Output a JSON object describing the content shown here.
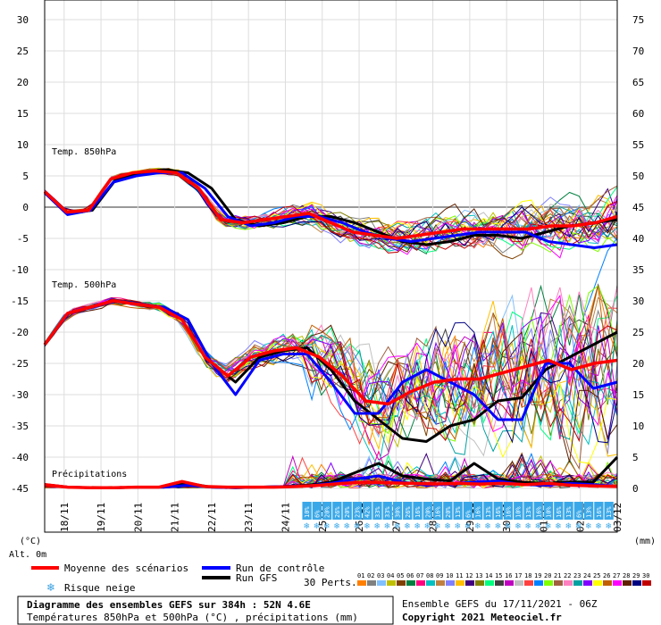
{
  "chart_data": {
    "type": "line",
    "title": "Diagramme des ensembles GEFS sur 384h : 52N 4.6E",
    "subtitle": "Températures 850hPa et 500hPa (°C) , précipitations (mm)",
    "left_axis": {
      "label": "(°C)",
      "ticks": [
        "30",
        "25",
        "20",
        "15",
        "10",
        "5",
        "0",
        "-5",
        "-10",
        "-15",
        "-20",
        "-25",
        "-30",
        "-35",
        "-40",
        "-45"
      ]
    },
    "right_axis": {
      "label": "(mm)",
      "ticks": [
        "75",
        "70",
        "65",
        "60",
        "55",
        "50",
        "45",
        "40",
        "35",
        "30",
        "25",
        "20",
        "15",
        "10",
        "5",
        "0"
      ]
    },
    "alt_label": "Alt. 0m",
    "dates": [
      "18/11",
      "19/11",
      "20/11",
      "21/11",
      "22/11",
      "23/11",
      "24/11",
      "25/11",
      "26/11",
      "27/11",
      "28/11",
      "29/11",
      "30/11",
      "01/12",
      "02/12",
      "03/12"
    ],
    "panel_labels": {
      "t850": "Temp. 850hPa",
      "t500": "Temp. 500hPa",
      "precip": "Précipitations"
    },
    "snow_risk_pct": [
      "10%",
      "6%",
      "20%",
      "26%",
      "20%",
      "23%",
      "42%",
      "33%",
      "33%",
      "30%",
      "26%",
      "16%",
      "20%",
      "16%",
      "20%",
      "13%",
      "6%",
      "16%",
      "13%",
      "16%",
      "16%",
      "10%",
      "13%",
      "16%",
      "10%",
      "16%",
      "13%",
      "6%",
      "13%",
      "16%",
      "13%"
    ],
    "series": [
      {
        "name": "Moyenne des scénarios",
        "color": "#ff0000",
        "t850": [
          2.5,
          -0.8,
          -0.5,
          4.5,
          5.5,
          5.8,
          5.5,
          3,
          -2,
          -2.5,
          -2,
          -1.5,
          -1,
          -2.5,
          -4,
          -4.5,
          -5,
          -4.5,
          -4,
          -3.5,
          -3.5,
          -3.5,
          -3.5,
          -3,
          -3,
          -2.5,
          -1.5
        ],
        "t500": [
          -22,
          -17,
          -16,
          -15,
          -15.5,
          -16,
          -18,
          -24,
          -27,
          -24,
          -23,
          -22.5,
          -24,
          -27,
          -31,
          -31.5,
          -29.5,
          -28,
          -27.5,
          -27.5,
          -26.5,
          -25.5,
          -24.5,
          -26,
          -25,
          -24.5
        ],
        "precip": [
          0.6,
          0.2,
          0.1,
          0.1,
          0.2,
          0.2,
          1.1,
          0.3,
          0.2,
          0.2,
          0.2,
          0.3,
          0.5,
          0.8,
          1.0,
          0.9,
          0.8,
          0.7,
          0.8,
          0.7,
          0.8,
          0.6,
          0.8,
          0.5,
          0.4,
          0.3
        ]
      },
      {
        "name": "Run de contrôle",
        "color": "#0000ff",
        "t850": [
          2.3,
          -1.2,
          -0.5,
          4,
          5,
          5.5,
          5.5,
          3,
          -1.5,
          -3,
          -2.5,
          -1.5,
          -1.5,
          -2.5,
          -4,
          -5,
          -5.5,
          -5,
          -4.5,
          -4,
          -4,
          -4,
          -5.5,
          -6,
          -6.5,
          -6
        ],
        "t500": [
          -22,
          -17,
          -16,
          -15,
          -15.5,
          -16,
          -18,
          -25,
          -30,
          -24.5,
          -23.5,
          -23.5,
          -28,
          -33,
          -33,
          -28,
          -26,
          -28,
          -30,
          -34,
          -34,
          -25,
          -25,
          -29,
          -28
        ],
        "precip": [
          0.6,
          0.2,
          0.1,
          0.1,
          0.2,
          0.2,
          0.5,
          0.2,
          0.1,
          0.2,
          0.3,
          0.4,
          0.8,
          1.5,
          2.0,
          1.0,
          0.5,
          0.7,
          1.0,
          1.2,
          0.6,
          0.5,
          0.8,
          0.6,
          0.3
        ]
      },
      {
        "name": "Run GFS",
        "color": "#000000",
        "t850": [
          2.5,
          -1,
          -0.5,
          4.5,
          5.5,
          6,
          5.5,
          3,
          -2,
          -3,
          -2.5,
          -1.5,
          -1.5,
          -2.5,
          -4,
          -5.5,
          -6,
          -5.5,
          -4.5,
          -4.5,
          -5,
          -4,
          -3,
          -2.5,
          -2
        ],
        "t500": [
          -22,
          -17,
          -16,
          -15,
          -15.5,
          -16,
          -18,
          -25,
          -28,
          -24,
          -23,
          -22.5,
          -26,
          -31,
          -34,
          -37,
          -37.5,
          -35,
          -34,
          -31,
          -30.5,
          -26,
          -24,
          -22,
          -20
        ],
        "precip": [
          0.6,
          0.2,
          0.1,
          0.1,
          0.2,
          0.2,
          0.8,
          0.2,
          0.1,
          0.2,
          0.3,
          0.5,
          1.0,
          2.5,
          4.0,
          2.0,
          1.5,
          1.2,
          4.0,
          1.5,
          1.0,
          0.8,
          1.0,
          1.0,
          5.0
        ]
      }
    ],
    "grid": true
  },
  "legend": {
    "mean": "Moyenne des scénarios",
    "control": "Run de contrôle",
    "gfs": "Run GFS",
    "perts": "30 Perts.",
    "snow": "Risque neige",
    "pert_numbers": [
      "01",
      "02",
      "03",
      "04",
      "05",
      "06",
      "07",
      "08",
      "09",
      "10",
      "11",
      "12",
      "13",
      "14",
      "15",
      "16",
      "17",
      "18",
      "19",
      "20",
      "21",
      "22",
      "23",
      "24",
      "25",
      "26",
      "27",
      "28",
      "29",
      "30"
    ],
    "pert_colors": [
      "#ff8000",
      "#808080",
      "#80c0ff",
      "#c0c000",
      "#804000",
      "#008040",
      "#ff0080",
      "#00c0c0",
      "#c08040",
      "#8080ff",
      "#ffc000",
      "#400080",
      "#808000",
      "#00ff80",
      "#404040",
      "#c000c0",
      "#c0c0c0",
      "#ff4040",
      "#0080ff",
      "#80ff00",
      "#a06040",
      "#ff80c0",
      "#00a0a0",
      "#8000ff",
      "#ffff00",
      "#c06000",
      "#ff00ff",
      "#602000",
      "#000080",
      "#c00000"
    ]
  },
  "footer": {
    "title": "Diagramme des ensembles GEFS sur 384h : 52N 4.6E",
    "subtitle": "Températures 850hPa et 500hPa (°C) , précipitations (mm)",
    "run": "Ensemble GEFS du 17/11/2021 - 06Z",
    "copyright": "Copyright 2021 Meteociel.fr"
  }
}
